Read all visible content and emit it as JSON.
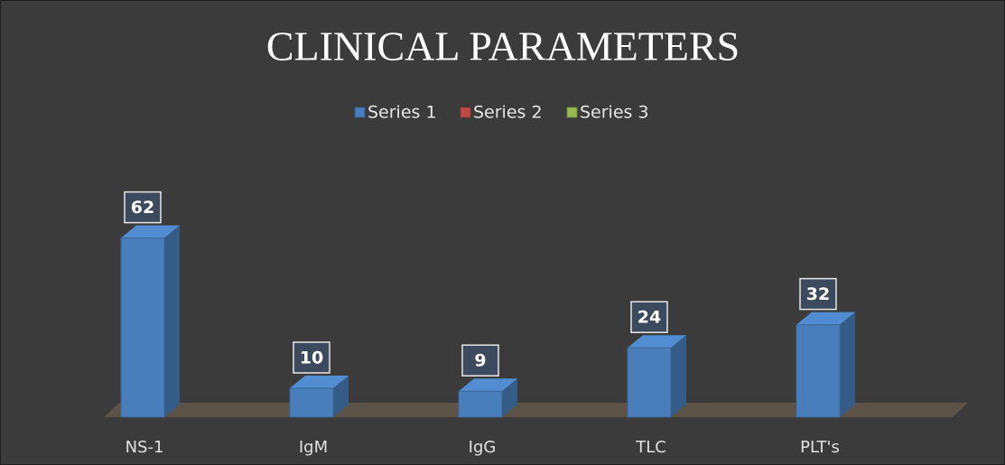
{
  "chart_data": {
    "type": "bar3d",
    "title": "CLINICAL PARAMETERS",
    "categories": [
      "NS-1",
      "IgM",
      "IgG",
      "TLC",
      "PLT's"
    ],
    "series": [
      {
        "name": "Series 1",
        "color": "#4a7ebb",
        "values": [
          62,
          10,
          9,
          24,
          32
        ]
      },
      {
        "name": "Series 2",
        "color": "#be4b48",
        "values": [
          null,
          null,
          null,
          null,
          null
        ]
      },
      {
        "name": "Series 3",
        "color": "#98b954",
        "values": [
          null,
          null,
          null,
          null,
          null
        ]
      }
    ],
    "legend": "top"
  }
}
